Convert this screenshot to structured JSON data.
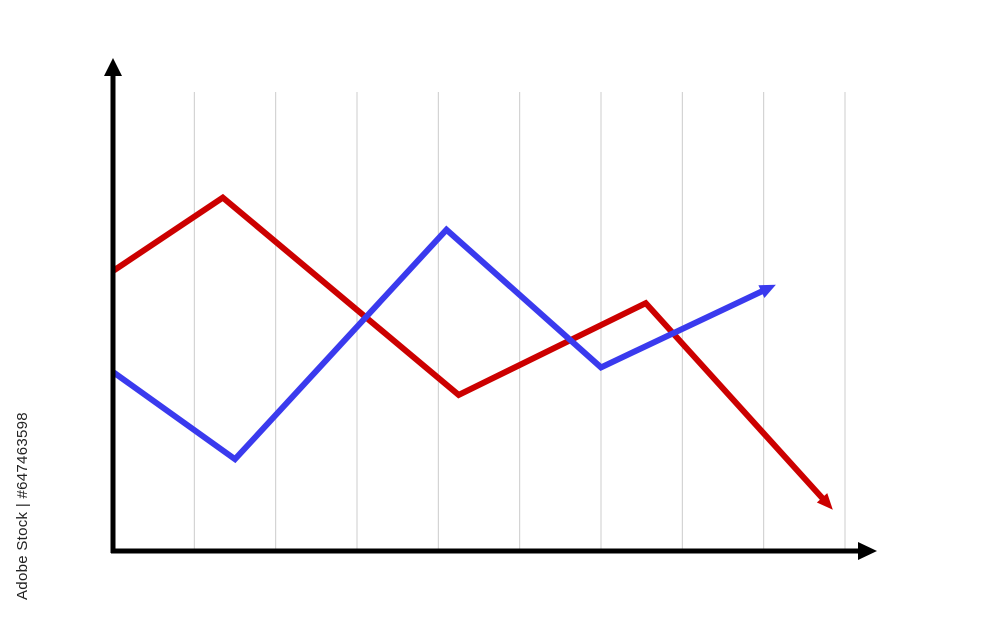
{
  "watermark_text": "Adobe Stock | #647463598",
  "colors": {
    "background": "#ffffff",
    "axis": "#000000",
    "grid": "#cccccc",
    "series_red": "#cc0000",
    "series_blue": "#3a3aee"
  },
  "chart_data": {
    "type": "line",
    "title": "",
    "xlabel": "",
    "ylabel": "",
    "xlim": [
      0,
      9
    ],
    "ylim": [
      0,
      10
    ],
    "grid": "vertical",
    "legend": "none",
    "axis_arrows": true,
    "series": [
      {
        "color": "#cc0000",
        "end_arrow": true,
        "x": [
          0,
          1.35,
          4.25,
          6.55,
          8.85
        ],
        "y": [
          6.1,
          7.7,
          3.4,
          5.4,
          0.9
        ]
      },
      {
        "color": "#3a3aee",
        "end_arrow": true,
        "x": [
          0,
          1.5,
          4.1,
          6.0,
          8.15
        ],
        "y": [
          3.9,
          2.0,
          7.0,
          4.0,
          5.8
        ]
      }
    ]
  }
}
